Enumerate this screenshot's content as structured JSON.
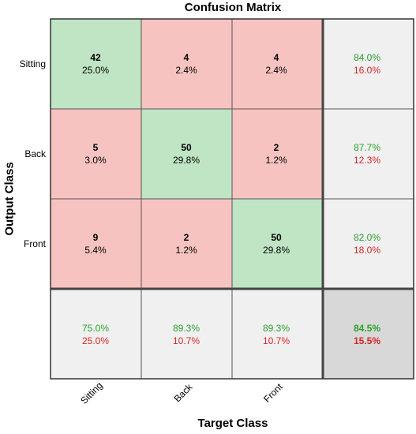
{
  "chart_data": {
    "type": "heatmap",
    "title": "Confusion Matrix",
    "xlabel": "Target Class",
    "ylabel": "Output Class",
    "classes": [
      "Sitting",
      "Back",
      "Front"
    ],
    "cells": [
      [
        {
          "count": "42",
          "pct": "25.0%"
        },
        {
          "count": "4",
          "pct": "2.4%"
        },
        {
          "count": "4",
          "pct": "2.4%"
        }
      ],
      [
        {
          "count": "5",
          "pct": "3.0%"
        },
        {
          "count": "50",
          "pct": "29.8%"
        },
        {
          "count": "2",
          "pct": "1.2%"
        }
      ],
      [
        {
          "count": "9",
          "pct": "5.4%"
        },
        {
          "count": "2",
          "pct": "1.2%"
        },
        {
          "count": "50",
          "pct": "29.8%"
        }
      ]
    ],
    "row_summary": [
      {
        "correct": "84.0%",
        "wrong": "16.0%"
      },
      {
        "correct": "87.7%",
        "wrong": "12.3%"
      },
      {
        "correct": "82.0%",
        "wrong": "18.0%"
      }
    ],
    "col_summary": [
      {
        "correct": "75.0%",
        "wrong": "25.0%"
      },
      {
        "correct": "89.3%",
        "wrong": "10.7%"
      },
      {
        "correct": "89.3%",
        "wrong": "10.7%"
      }
    ],
    "overall": {
      "correct": "84.5%",
      "wrong": "15.5%"
    },
    "colors": {
      "diagonal": "#bfe5c4",
      "off_diagonal": "#f7c3c0",
      "summary": "#f0f0f0",
      "overall": "#d8d8d8",
      "correct_text": "#2ca02c",
      "wrong_text": "#d62728"
    }
  }
}
